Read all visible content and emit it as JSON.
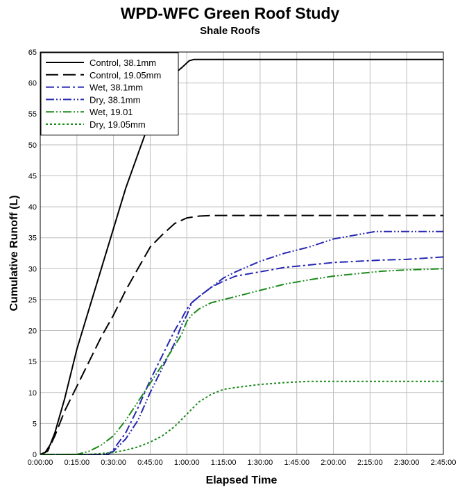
{
  "chart_data": {
    "type": "line",
    "title": "WPD-WFC Green Roof Study",
    "subtitle": "Shale Roofs",
    "xlabel": "Elapsed Time",
    "ylabel": "Cumulative Runoff (L)",
    "xlim_minutes": [
      0,
      165
    ],
    "ylim": [
      0,
      65
    ],
    "x_tick_labels": [
      "0:00:00",
      "0:15:00",
      "0:30:00",
      "0:45:00",
      "1:00:00",
      "1:15:00",
      "1:30:00",
      "1:45:00",
      "2:00:00",
      "2:15:00",
      "2:30:00",
      "2:45:00"
    ],
    "y_ticks": [
      0,
      5,
      10,
      15,
      20,
      25,
      30,
      35,
      40,
      45,
      50,
      55,
      60,
      65
    ],
    "grid": true,
    "legend_position": "top-left",
    "series": [
      {
        "name": "Control, 38.1mm",
        "color": "#000000",
        "dash": "solid",
        "points": [
          [
            0,
            0
          ],
          [
            2,
            0.3
          ],
          [
            4,
            1.5
          ],
          [
            6,
            3.5
          ],
          [
            10,
            9
          ],
          [
            15,
            17
          ],
          [
            20,
            23.5
          ],
          [
            25,
            30
          ],
          [
            30,
            36.5
          ],
          [
            35,
            43
          ],
          [
            40,
            48.5
          ],
          [
            45,
            54
          ],
          [
            50,
            58.5
          ],
          [
            55,
            61.5
          ],
          [
            58,
            62.5
          ],
          [
            61,
            63.6
          ],
          [
            63,
            63.8
          ],
          [
            70,
            63.8
          ],
          [
            165,
            63.8
          ]
        ]
      },
      {
        "name": "Control, 19.05mm",
        "color": "#000000",
        "dash": "longdash",
        "points": [
          [
            0,
            0
          ],
          [
            3,
            0.5
          ],
          [
            6,
            3
          ],
          [
            10,
            7
          ],
          [
            15,
            11
          ],
          [
            20,
            15
          ],
          [
            25,
            19
          ],
          [
            30,
            22.5
          ],
          [
            35,
            26.5
          ],
          [
            40,
            30
          ],
          [
            45,
            33.5
          ],
          [
            50,
            35.5
          ],
          [
            55,
            37.3
          ],
          [
            60,
            38.2
          ],
          [
            65,
            38.5
          ],
          [
            70,
            38.6
          ],
          [
            165,
            38.6
          ]
        ]
      },
      {
        "name": "Wet, 38.1mm",
        "color": "#2626b3",
        "dash": "dashdot",
        "points": [
          [
            0,
            0
          ],
          [
            28,
            0
          ],
          [
            30,
            0.8
          ],
          [
            35,
            3.5
          ],
          [
            40,
            7.5
          ],
          [
            45,
            12
          ],
          [
            50,
            16
          ],
          [
            55,
            20
          ],
          [
            58,
            22
          ],
          [
            60,
            23.5
          ],
          [
            62,
            24.5
          ],
          [
            65,
            25.5
          ],
          [
            70,
            27
          ],
          [
            75,
            28
          ],
          [
            80,
            28.8
          ],
          [
            90,
            29.5
          ],
          [
            100,
            30.2
          ],
          [
            110,
            30.6
          ],
          [
            120,
            31
          ],
          [
            130,
            31.2
          ],
          [
            140,
            31.4
          ],
          [
            150,
            31.5
          ],
          [
            165,
            31.9
          ]
        ]
      },
      {
        "name": "Dry, 38.1mm",
        "color": "#2626b3",
        "dash": "dashdotdot",
        "points": [
          [
            0,
            0
          ],
          [
            26,
            0
          ],
          [
            30,
            0.5
          ],
          [
            35,
            2.5
          ],
          [
            40,
            5.5
          ],
          [
            45,
            10
          ],
          [
            50,
            14
          ],
          [
            55,
            18
          ],
          [
            58,
            21
          ],
          [
            60,
            22.5
          ],
          [
            62,
            24.5
          ],
          [
            65,
            25.5
          ],
          [
            70,
            27
          ],
          [
            75,
            28.5
          ],
          [
            80,
            29.5
          ],
          [
            90,
            31.2
          ],
          [
            100,
            32.5
          ],
          [
            110,
            33.5
          ],
          [
            120,
            34.8
          ],
          [
            130,
            35.5
          ],
          [
            137,
            36
          ],
          [
            150,
            36
          ],
          [
            165,
            36
          ]
        ]
      },
      {
        "name": "Wet, 19.01",
        "color": "#1a8a1a",
        "dash": "dashdotdot",
        "points": [
          [
            0,
            0
          ],
          [
            15,
            0
          ],
          [
            20,
            0.5
          ],
          [
            25,
            1.5
          ],
          [
            30,
            3
          ],
          [
            35,
            5.5
          ],
          [
            40,
            8.5
          ],
          [
            45,
            11.5
          ],
          [
            50,
            14.5
          ],
          [
            55,
            17.5
          ],
          [
            58,
            19.5
          ],
          [
            60,
            21.5
          ],
          [
            62,
            22.5
          ],
          [
            65,
            23.5
          ],
          [
            70,
            24.5
          ],
          [
            75,
            25
          ],
          [
            80,
            25.5
          ],
          [
            90,
            26.5
          ],
          [
            100,
            27.5
          ],
          [
            110,
            28.2
          ],
          [
            120,
            28.8
          ],
          [
            130,
            29.2
          ],
          [
            140,
            29.6
          ],
          [
            150,
            29.8
          ],
          [
            165,
            30
          ]
        ]
      },
      {
        "name": "Dry, 19.05mm",
        "color": "#1a8a1a",
        "dash": "dotted",
        "points": [
          [
            0,
            0
          ],
          [
            20,
            0
          ],
          [
            30,
            0.3
          ],
          [
            35,
            0.7
          ],
          [
            40,
            1.2
          ],
          [
            45,
            2
          ],
          [
            50,
            3
          ],
          [
            55,
            4.5
          ],
          [
            60,
            6.5
          ],
          [
            65,
            8.5
          ],
          [
            70,
            9.7
          ],
          [
            75,
            10.5
          ],
          [
            80,
            10.8
          ],
          [
            90,
            11.3
          ],
          [
            100,
            11.6
          ],
          [
            110,
            11.8
          ],
          [
            120,
            11.8
          ],
          [
            165,
            11.8
          ]
        ]
      }
    ]
  }
}
